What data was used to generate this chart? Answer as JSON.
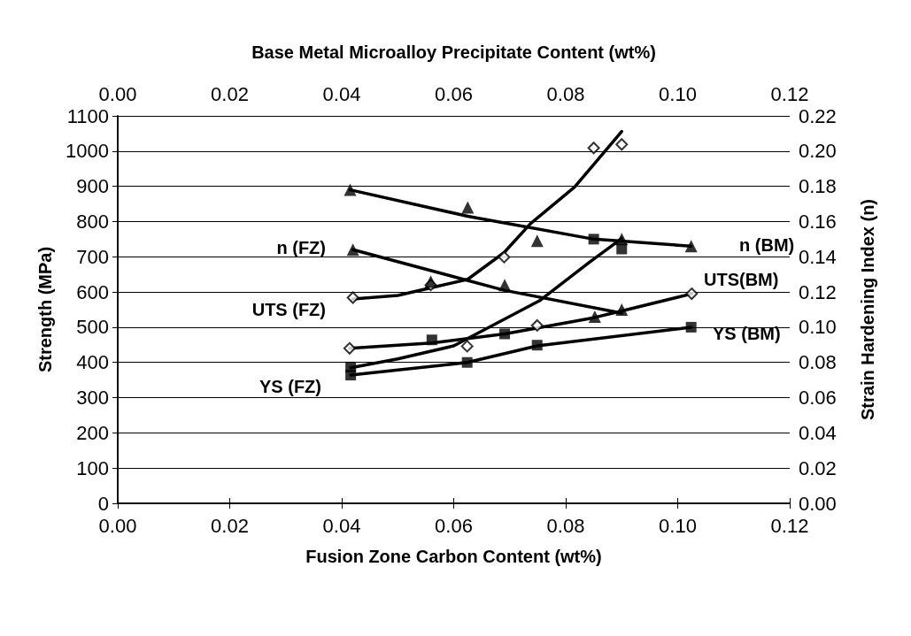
{
  "chart_data": {
    "type": "scatter",
    "xlabel": "Fusion Zone Carbon Content (wt%)",
    "x2label": "Base Metal Microalloy Precipitate Content (wt%)",
    "ylabel": "Strength (MPa)",
    "y2label": "Strain Hardening Index (n)",
    "xlim": [
      0,
      0.12
    ],
    "xticks": [
      {
        "value": 0,
        "label": "0.00"
      },
      {
        "value": 0.02,
        "label": "0.02"
      },
      {
        "value": 0.04,
        "label": "0.04"
      },
      {
        "value": 0.06,
        "label": "0.06"
      },
      {
        "value": 0.08,
        "label": "0.08"
      },
      {
        "value": 0.1,
        "label": "0.10"
      },
      {
        "value": 0.12,
        "label": "0.12"
      }
    ],
    "x2lim": [
      0,
      0.12
    ],
    "x2ticks": [
      {
        "value": 0,
        "label": "0.00"
      },
      {
        "value": 0.02,
        "label": "0.02"
      },
      {
        "value": 0.04,
        "label": "0.04"
      },
      {
        "value": 0.06,
        "label": "0.06"
      },
      {
        "value": 0.08,
        "label": "0.08"
      },
      {
        "value": 0.1,
        "label": "0.10"
      },
      {
        "value": 0.12,
        "label": "0.12"
      }
    ],
    "ylim": [
      0,
      1100
    ],
    "yticks": [
      0,
      100,
      200,
      300,
      400,
      500,
      600,
      700,
      800,
      900,
      1000,
      1100
    ],
    "y2lim": [
      0,
      0.22
    ],
    "y2ticks": [
      {
        "value": 0,
        "label": "0.00"
      },
      {
        "value": 0.02,
        "label": "0.02"
      },
      {
        "value": 0.04,
        "label": "0.04"
      },
      {
        "value": 0.06,
        "label": "0.06"
      },
      {
        "value": 0.08,
        "label": "0.08"
      },
      {
        "value": 0.1,
        "label": "0.10"
      },
      {
        "value": 0.12,
        "label": "0.12"
      },
      {
        "value": 0.14,
        "label": "0.14"
      },
      {
        "value": 0.16,
        "label": "0.16"
      },
      {
        "value": 0.18,
        "label": "0.18"
      },
      {
        "value": 0.2,
        "label": "0.20"
      },
      {
        "value": 0.22,
        "label": "0.22"
      }
    ],
    "grid": "y",
    "series": [
      {
        "type": "line",
        "marker": "none",
        "color": "#000000",
        "x": [
          0.042,
          0.05,
          0.056,
          0.0625,
          0.069,
          0.0737,
          0.0816,
          0.09
        ],
        "values": [
          580,
          590,
          612,
          636,
          712,
          794,
          898,
          1056
        ]
      },
      {
        "type": "line",
        "marker": "none",
        "color": "#000000",
        "x": [
          0.0414,
          0.0561,
          0.0691,
          0.085,
          0.0897,
          0.1025
        ],
        "values": [
          440,
          455,
          481,
          527,
          545,
          595
        ]
      },
      {
        "type": "line",
        "marker": "none",
        "color": "#000000",
        "x": [
          0.0416,
          0.05,
          0.06,
          0.0753,
          0.0842,
          0.09
        ],
        "values": [
          385,
          410,
          447,
          575,
          684,
          752
        ]
      },
      {
        "type": "line",
        "marker": "none",
        "color": "#000000",
        "x": [
          0.0416,
          0.0624,
          0.0749,
          0.1024
        ],
        "values": [
          364,
          400,
          447,
          500
        ]
      },
      {
        "type": "line",
        "marker": "none",
        "color": "#000000",
        "axis": "y2",
        "x": [
          0.0415,
          0.0625,
          0.085,
          0.1024
        ],
        "values": [
          0.178,
          0.163,
          0.15,
          0.146
        ]
      },
      {
        "type": "line",
        "marker": "none",
        "color": "#000000",
        "axis": "y2",
        "x": [
          0.042,
          0.069,
          0.09
        ],
        "values": [
          0.144,
          0.121,
          0.108
        ]
      },
      {
        "marker": "diamond",
        "color": "#000000",
        "x": [
          0.042,
          0.0559,
          0.069,
          0.085,
          0.09,
          0.0414,
          0.0624,
          0.0749,
          0.1025
        ],
        "values": [
          584,
          620,
          699,
          1009,
          1019,
          440,
          446,
          505,
          595
        ]
      },
      {
        "marker": "square",
        "color": "#000000",
        "x": [
          0.0561,
          0.0691,
          0.0749,
          0.0624,
          0.0416,
          0.0416,
          0.085,
          0.09,
          0.1024
        ],
        "values": [
          464,
          481,
          449,
          400,
          387,
          364,
          750,
          722,
          500
        ]
      },
      {
        "marker": "triangle",
        "color": "#000000",
        "axis": "y2",
        "x": [
          0.0415,
          0.0625,
          0.0749,
          0.09,
          0.1024,
          0.042,
          0.0559,
          0.0691,
          0.0852,
          0.09
        ],
        "values": [
          0.178,
          0.168,
          0.149,
          0.15,
          0.146,
          0.144,
          0.126,
          0.124,
          0.106,
          0.11
        ]
      }
    ],
    "annotations": [
      "n (FZ)",
      "UTS (FZ)",
      "YS (FZ)",
      "n (BM)",
      "UTS(BM)",
      "YS (BM)"
    ]
  }
}
